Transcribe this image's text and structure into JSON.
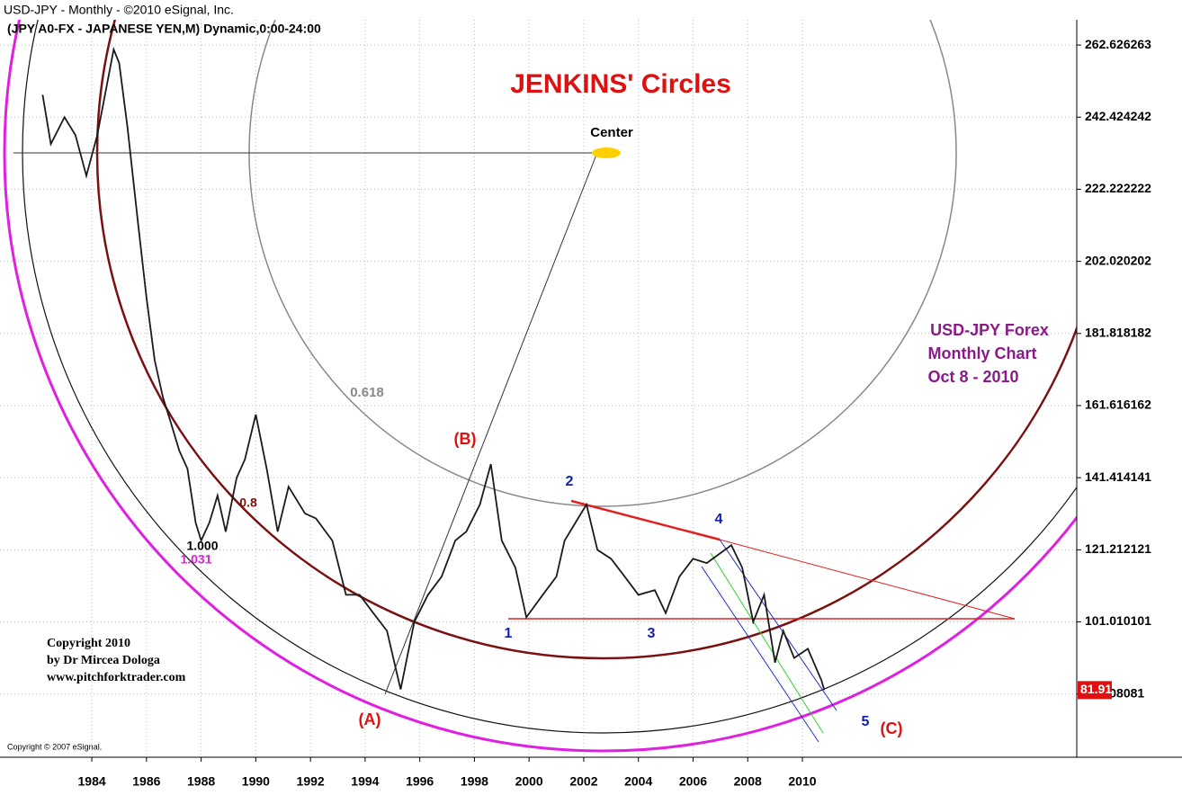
{
  "chart_data": {
    "type": "line",
    "title": "USD-JPY - Monthly - ©2010 eSignal, Inc.",
    "subtitle": "(JPY A0-FX - JAPANESE YEN,M) Dynamic,0:00-24:00",
    "heading": "JENKINS' Circles",
    "annotations": [
      "Center",
      "0.618",
      "(B)",
      "(A)",
      "(C)",
      "1",
      "2",
      "3",
      "4",
      "5",
      "1.000",
      "1.031",
      "0.8"
    ],
    "info": [
      "USD-JPY Forex",
      "Monthly Chart",
      "Oct 8 - 2010"
    ],
    "copyright": [
      "Copyright 2010",
      "by Dr Mircea Dologa",
      "www.pitchforktrader.com"
    ],
    "source": "Copyright © 2007 eSignal.",
    "last_price": "81.91",
    "x": [
      1982.2,
      1982.5,
      1983.0,
      1983.4,
      1983.8,
      1984.2,
      1984.8,
      1985.0,
      1985.3,
      1985.7,
      1986.0,
      1986.3,
      1986.6,
      1986.9,
      1987.2,
      1987.5,
      1987.8,
      1988.0,
      1988.3,
      1988.6,
      1988.9,
      1989.3,
      1989.6,
      1990.0,
      1990.4,
      1990.8,
      1991.2,
      1991.8,
      1992.2,
      1992.8,
      1993.3,
      1993.8,
      1994.3,
      1994.8,
      1995.3,
      1995.8,
      1996.3,
      1996.8,
      1997.3,
      1997.7,
      1998.2,
      1998.6,
      1999.0,
      1999.5,
      1999.9,
      2000.5,
      2001.0,
      2001.3,
      2002.1,
      2002.5,
      2003.0,
      2003.5,
      2004.0,
      2004.6,
      2005.0,
      2005.5,
      2006.0,
      2006.5,
      2007.4,
      2007.8,
      2008.2,
      2008.6,
      2009.0,
      2009.3,
      2009.7,
      2010.2,
      2010.7,
      2010.8
    ],
    "series": [
      {
        "name": "USD-JPY",
        "color": "#1a1a1a",
        "values": [
          248.7,
          234.9,
          242.4,
          237.4,
          226,
          237.4,
          261.4,
          257.6,
          239.9,
          212.1,
          191.9,
          174.3,
          164,
          156.6,
          149,
          143.9,
          128.8,
          123.8,
          128.8,
          136.4,
          126.3,
          141.4,
          146.5,
          159.1,
          143.9,
          126.3,
          138.9,
          131.4,
          130,
          123.8,
          108.6,
          108.6,
          103.5,
          98.5,
          82.1,
          101,
          108.6,
          113.7,
          123.8,
          126.3,
          133.9,
          145.2,
          123.8,
          116.2,
          102.3,
          108.6,
          113.7,
          123.8,
          133.9,
          121.2,
          118.7,
          113.7,
          108.6,
          109.9,
          103.5,
          113.7,
          118.7,
          117.5,
          122.5,
          116.2,
          101,
          108.6,
          89.6,
          98.5,
          90.9,
          93.5,
          84.6,
          81.91
        ]
      }
    ],
    "xlim": [
      1980.64,
      2020.04
    ],
    "xticks": [
      1984,
      1986,
      1988,
      1990,
      1992,
      1994,
      1996,
      1998,
      2000,
      2002,
      2004,
      2006,
      2008,
      2010
    ],
    "ylim": [
      63.1,
      269.7
    ],
    "yticks": [
      80.808081,
      101.010101,
      121.212121,
      141.414141,
      161.616162,
      181.818182,
      202.020202,
      222.222222,
      242.424242,
      262.626263
    ],
    "grid": true
  }
}
